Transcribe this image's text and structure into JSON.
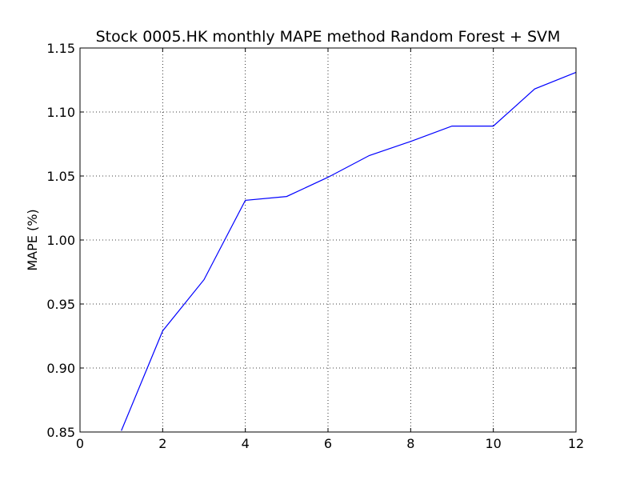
{
  "chart_data": {
    "type": "line",
    "title": "Stock 0005.HK monthly MAPE method Random Forest + SVM",
    "xlabel": "",
    "ylabel": "MAPE (%)",
    "xlim": [
      0,
      12
    ],
    "ylim": [
      0.85,
      1.15
    ],
    "xticks": [
      0,
      2,
      4,
      6,
      8,
      10,
      12
    ],
    "yticks": [
      0.85,
      0.9,
      0.95,
      1.0,
      1.05,
      1.1,
      1.15
    ],
    "grid": true,
    "series": [
      {
        "color": "#0000ff",
        "x": [
          1,
          2,
          3,
          4,
          5,
          6,
          7,
          8,
          9,
          10,
          11,
          12
        ],
        "y": [
          0.851,
          0.929,
          0.969,
          1.031,
          1.034,
          1.049,
          1.066,
          1.077,
          1.089,
          1.089,
          1.118,
          1.131
        ]
      }
    ]
  }
}
